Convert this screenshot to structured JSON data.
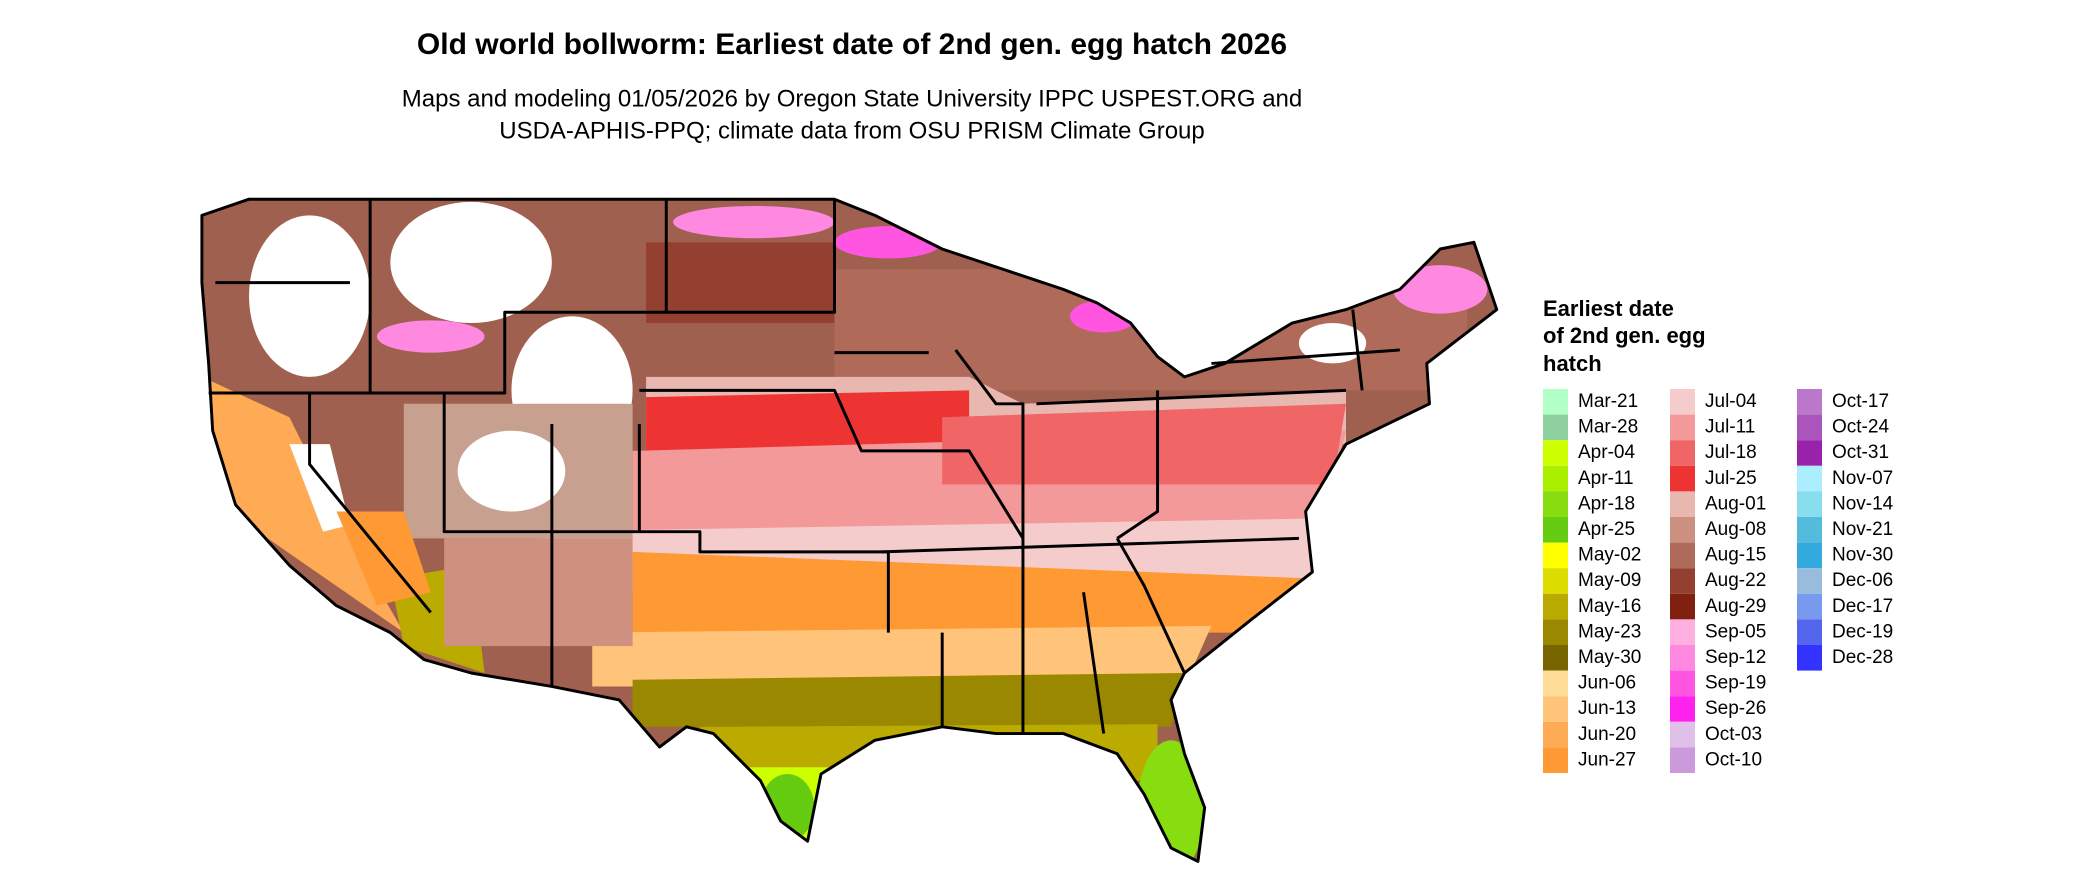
{
  "title": "Old world bollworm: Earliest date of 2nd gen. egg hatch 2026",
  "subtitle": [
    "Maps and modeling 01/05/2026 by Oregon State University IPPC USPEST.ORG and",
    "USDA-APHIS-PPQ; climate data from OSU PRISM Climate Group"
  ],
  "legend": {
    "title": [
      "Earliest date",
      "of 2nd gen. egg",
      "hatch"
    ],
    "items": [
      {
        "label": "Mar-21",
        "color": "#b2ffc8"
      },
      {
        "label": "Mar-28",
        "color": "#8fd19e"
      },
      {
        "label": "Apr-04",
        "color": "#ccff00"
      },
      {
        "label": "Apr-11",
        "color": "#aaee00"
      },
      {
        "label": "Apr-18",
        "color": "#88dd11"
      },
      {
        "label": "Apr-25",
        "color": "#66cc11"
      },
      {
        "label": "May-02",
        "color": "#ffff00"
      },
      {
        "label": "May-09",
        "color": "#dddd00"
      },
      {
        "label": "May-16",
        "color": "#bbaa00"
      },
      {
        "label": "May-23",
        "color": "#998800"
      },
      {
        "label": "May-30",
        "color": "#776600"
      },
      {
        "label": "Jun-06",
        "color": "#ffdd99"
      },
      {
        "label": "Jun-13",
        "color": "#ffc47a"
      },
      {
        "label": "Jun-20",
        "color": "#ffaa55"
      },
      {
        "label": "Jun-27",
        "color": "#ff9933"
      },
      {
        "label": "Jul-04",
        "color": "#f5cccc"
      },
      {
        "label": "Jul-11",
        "color": "#f39999"
      },
      {
        "label": "Jul-18",
        "color": "#f06666"
      },
      {
        "label": "Jul-25",
        "color": "#ee3333"
      },
      {
        "label": "Aug-01",
        "color": "#e8b8b0"
      },
      {
        "label": "Aug-08",
        "color": "#cc9080"
      },
      {
        "label": "Aug-15",
        "color": "#b06a5a"
      },
      {
        "label": "Aug-22",
        "color": "#944030"
      },
      {
        "label": "Aug-29",
        "color": "#802010"
      },
      {
        "label": "Sep-05",
        "color": "#ffb0e0"
      },
      {
        "label": "Sep-12",
        "color": "#ff88e0"
      },
      {
        "label": "Sep-19",
        "color": "#ff55e0"
      },
      {
        "label": "Sep-26",
        "color": "#ff22ee"
      },
      {
        "label": "Oct-03",
        "color": "#e0c0e8"
      },
      {
        "label": "Oct-10",
        "color": "#cc99dd"
      },
      {
        "label": "Oct-17",
        "color": "#bb77cc"
      },
      {
        "label": "Oct-24",
        "color": "#aa55bb"
      },
      {
        "label": "Oct-31",
        "color": "#9922aa"
      },
      {
        "label": "Nov-07",
        "color": "#aaeeff"
      },
      {
        "label": "Nov-14",
        "color": "#88ddee"
      },
      {
        "label": "Nov-21",
        "color": "#55bbdd"
      },
      {
        "label": "Nov-30",
        "color": "#33aadd"
      },
      {
        "label": "Dec-06",
        "color": "#99bbdd"
      },
      {
        "label": "Dec-17",
        "color": "#7799ee"
      },
      {
        "label": "Dec-19",
        "color": "#5566ee"
      },
      {
        "label": "Dec-28",
        "color": "#3333ff"
      }
    ]
  }
}
